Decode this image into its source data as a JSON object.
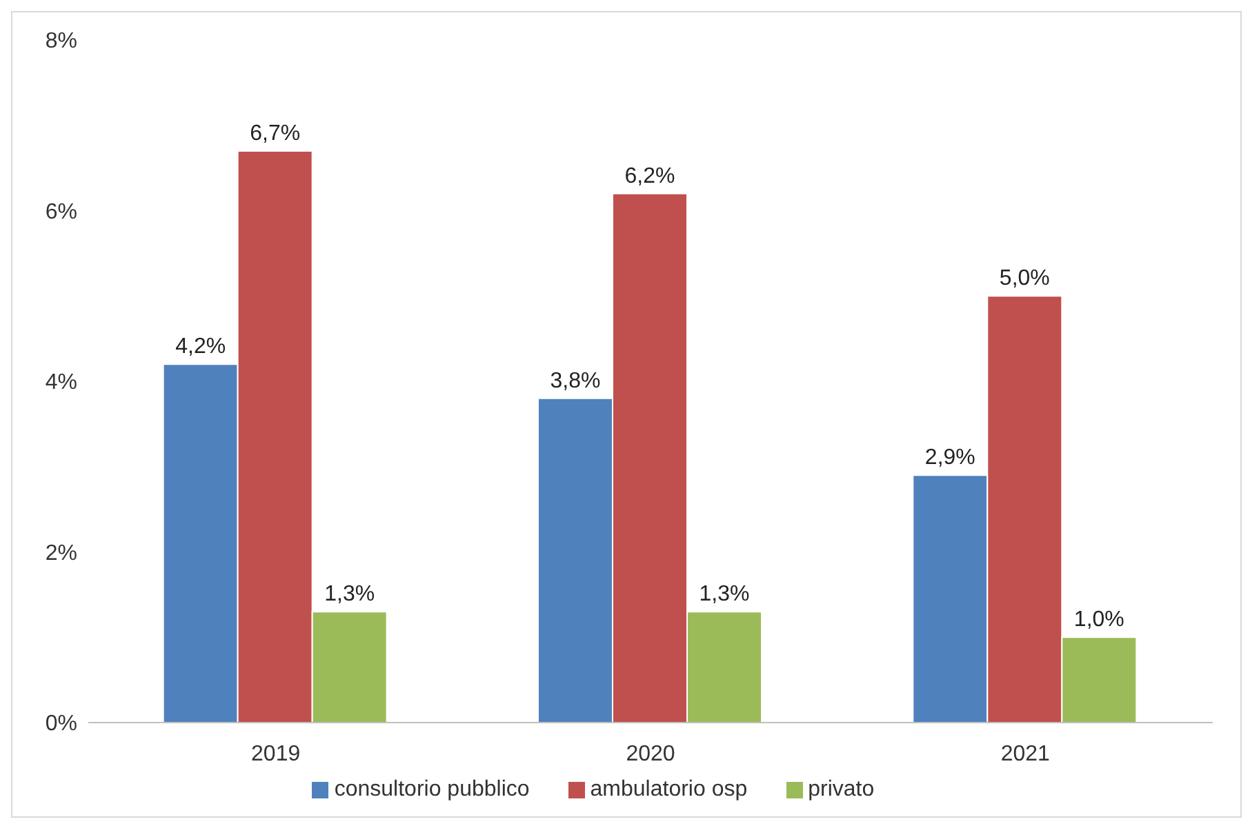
{
  "chart_data": {
    "type": "bar",
    "categories": [
      "2019",
      "2020",
      "2021"
    ],
    "series": [
      {
        "name": "consultorio pubblico",
        "color": "#4f81bd",
        "values": [
          4.2,
          3.8,
          2.9
        ],
        "value_labels": [
          "4,2%",
          "3,8%",
          "2,9%"
        ]
      },
      {
        "name": "ambulatorio osp",
        "color": "#c0504d",
        "values": [
          6.7,
          6.2,
          5.0
        ],
        "value_labels": [
          "6,7%",
          "6,2%",
          "5,0%"
        ]
      },
      {
        "name": "privato",
        "color": "#9bbb59",
        "values": [
          1.3,
          1.3,
          1.0
        ],
        "value_labels": [
          "1,3%",
          "1,3%",
          "1,0%"
        ]
      }
    ],
    "ylim": [
      0,
      8
    ],
    "yticks": [
      {
        "value": 0,
        "label": "0%"
      },
      {
        "value": 2,
        "label": "2%"
      },
      {
        "value": 4,
        "label": "4%"
      },
      {
        "value": 6,
        "label": "6%"
      },
      {
        "value": 8,
        "label": "8%"
      }
    ],
    "grid": false,
    "legend": "bottom"
  }
}
